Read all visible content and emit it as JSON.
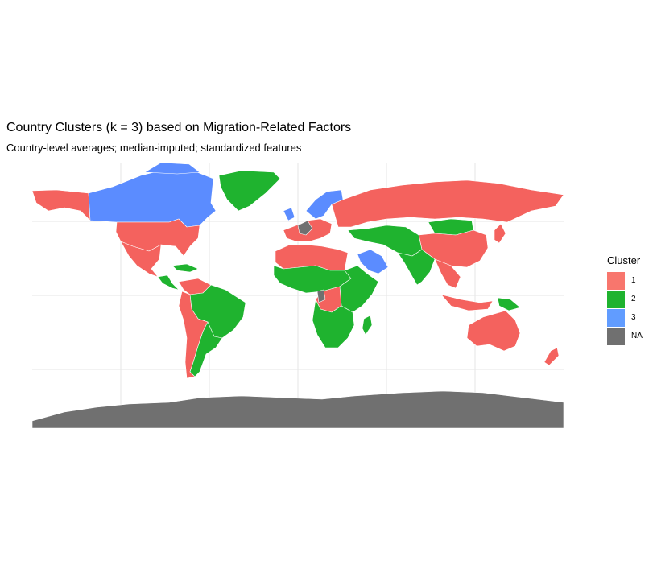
{
  "title": "Country Clusters (k = 3) based on Migration-Related Factors",
  "subtitle": "Country-level averages; median-imputed; standardized features",
  "legend": {
    "title": "Cluster",
    "items": [
      {
        "label": "1",
        "color": "#F8766D"
      },
      {
        "label": "2",
        "color": "#1FB32F"
      },
      {
        "label": "3",
        "color": "#619CFF"
      },
      {
        "label": "NA",
        "color": "#707070"
      }
    ]
  },
  "colors": {
    "c1": "#F4625E",
    "c2": "#1FB32F",
    "c3": "#5B8CFF",
    "na": "#707070",
    "grid": "#E6E6E6"
  },
  "chart_data": {
    "type": "choropleth",
    "variable": "Cluster",
    "categories": [
      "1",
      "2",
      "3",
      "NA"
    ],
    "regions": [
      {
        "name": "United States",
        "cluster": "1"
      },
      {
        "name": "Mexico",
        "cluster": "1"
      },
      {
        "name": "Canada",
        "cluster": "3"
      },
      {
        "name": "Greenland",
        "cluster": "2"
      },
      {
        "name": "Brazil",
        "cluster": "2"
      },
      {
        "name": "Argentina",
        "cluster": "1"
      },
      {
        "name": "Venezuela",
        "cluster": "1"
      },
      {
        "name": "Russia",
        "cluster": "1"
      },
      {
        "name": "China",
        "cluster": "1"
      },
      {
        "name": "Mongolia",
        "cluster": "2"
      },
      {
        "name": "India",
        "cluster": "2"
      },
      {
        "name": "Saudi Arabia",
        "cluster": "3"
      },
      {
        "name": "Scandinavia",
        "cluster": "3"
      },
      {
        "name": "Australia",
        "cluster": "1"
      },
      {
        "name": "New Zealand",
        "cluster": "1"
      },
      {
        "name": "Madagascar",
        "cluster": "2"
      },
      {
        "name": "Antarctica",
        "cluster": "NA"
      }
    ]
  }
}
